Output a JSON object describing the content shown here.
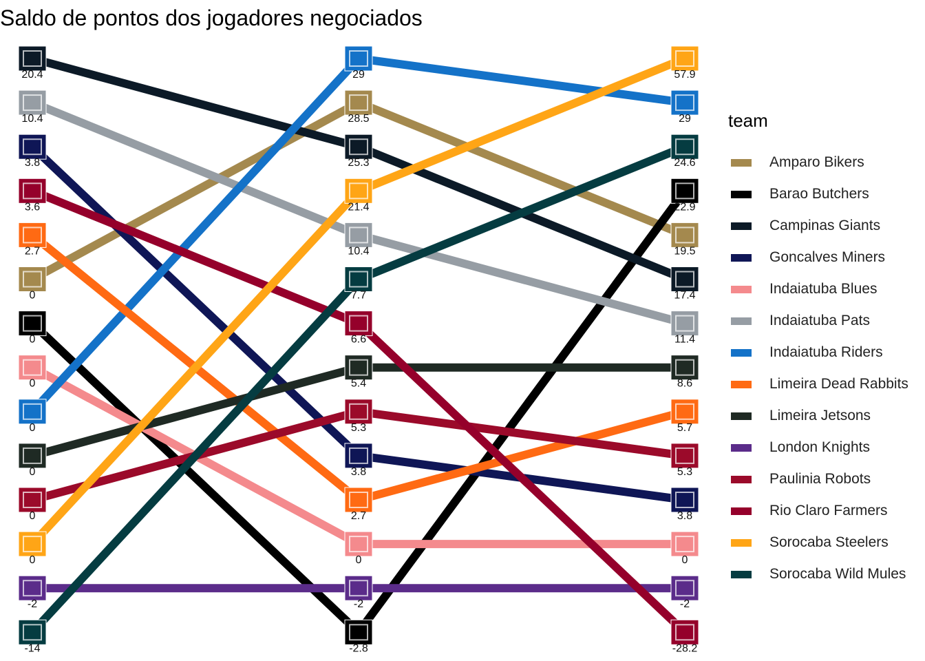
{
  "chart_data": {
    "type": "line",
    "title": "Saldo de pontos dos jogadores negociados",
    "legend_title": "team",
    "legend_position": "right",
    "grid": false,
    "series": [
      {
        "name": "Amparo Bikers",
        "color": "#A4894E",
        "icon": "amparo-bikers-logo",
        "values": [
          0,
          28.5,
          19.5
        ],
        "labels": [
          "0",
          "28.5",
          "19.5"
        ]
      },
      {
        "name": "Barao Butchers",
        "color": "#000000",
        "icon": "barao-butchers-logo",
        "values": [
          0,
          -2.8,
          22.9
        ],
        "labels": [
          "0",
          "-2.8",
          "22.9"
        ]
      },
      {
        "name": "Campinas Giants",
        "color": "#0C1A27",
        "icon": "campinas-giants-logo",
        "values": [
          20.4,
          25.3,
          17.4
        ],
        "labels": [
          "20.4",
          "25.3",
          "17.4"
        ]
      },
      {
        "name": "Goncalves Miners",
        "color": "#0F1656",
        "icon": "goncalves-miners-logo",
        "values": [
          3.8,
          3.8,
          3.8
        ],
        "labels": [
          "3.8",
          "3.8",
          "3.8"
        ]
      },
      {
        "name": "Indaiatuba Blues",
        "color": "#F48A8D",
        "icon": "indaiatuba-blues-logo",
        "values": [
          0,
          0,
          0
        ],
        "labels": [
          "0",
          "0",
          "0"
        ]
      },
      {
        "name": "Indaiatuba Pats",
        "color": "#969DA4",
        "icon": "indaiatuba-pats-logo",
        "values": [
          10.4,
          10.4,
          11.4
        ],
        "labels": [
          "10.4",
          "10.4",
          "11.4"
        ]
      },
      {
        "name": "Indaiatuba Riders",
        "color": "#1472C8",
        "icon": "indaiatuba-riders-logo",
        "values": [
          0,
          29,
          29
        ],
        "labels": [
          "0",
          "29",
          "29"
        ]
      },
      {
        "name": "Limeira Dead Rabbits",
        "color": "#FF6A13",
        "icon": "limeira-dead-rabbits-logo",
        "values": [
          2.7,
          2.7,
          5.7
        ],
        "labels": [
          "2.7",
          "2.7",
          "5.7"
        ]
      },
      {
        "name": "Limeira Jetsons",
        "color": "#1F2A24",
        "icon": "limeira-jetsons-logo",
        "values": [
          0,
          5.4,
          8.6
        ],
        "labels": [
          "0",
          "5.4",
          "8.6"
        ]
      },
      {
        "name": "London Knights",
        "color": "#5B2C8A",
        "icon": "london-knights-logo",
        "values": [
          -2,
          -2,
          -2
        ],
        "labels": [
          "-2",
          "-2",
          "-2"
        ]
      },
      {
        "name": "Paulinia Robots",
        "color": "#9B0A2A",
        "icon": "paulinia-robots-logo",
        "values": [
          0,
          5.3,
          5.3
        ],
        "labels": [
          "0",
          "5.3",
          "5.3"
        ]
      },
      {
        "name": "Rio Claro Farmers",
        "color": "#95002B",
        "icon": "rio-claro-farmers-logo",
        "values": [
          3.6,
          6.6,
          -28.2
        ],
        "labels": [
          "3.6",
          "6.6",
          "-28.2"
        ]
      },
      {
        "name": "Sorocaba Steelers",
        "color": "#FFA516",
        "icon": "sorocaba-steelers-logo",
        "values": [
          0,
          21.4,
          57.9
        ],
        "labels": [
          "0",
          "21.4",
          "57.9"
        ]
      },
      {
        "name": "Sorocaba Wild Mules",
        "color": "#053C41",
        "icon": "sorocaba-wild-mules-logo",
        "values": [
          -14,
          7.7,
          24.6
        ],
        "labels": [
          "-14",
          "7.7",
          "24.6"
        ]
      }
    ]
  }
}
